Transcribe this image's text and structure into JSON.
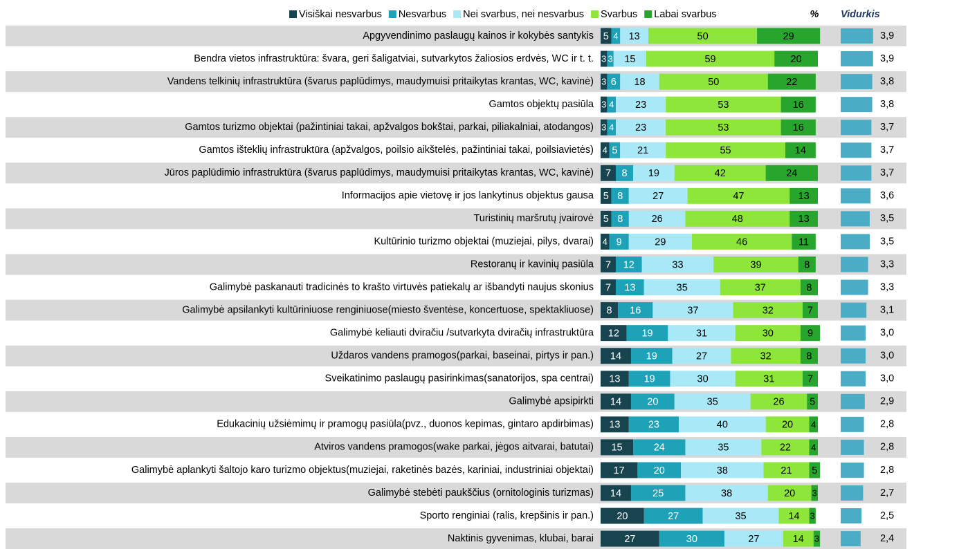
{
  "chart_data": [
    {
      "type": "stacked-bar",
      "orientation": "horizontal",
      "title": "%",
      "categories": [
        "Apgyvendinimo paslaugų kainos ir kokybės santykis",
        "Bendra vietos infrastruktūra: švara, geri šaligatviai, sutvarkytos žaliosios erdvės, WC ir t. t.",
        "Vandens telkinių infrastruktūra (švarus paplūdimys, maudymuisi pritaikytas krantas, WC, kavinė)",
        "Gamtos objektų pasiūla",
        "Gamtos turizmo objektai (pažintiniai takai, apžvalgos bokštai, parkai, piliakalniai, atodangos)",
        "Gamtos išteklių infrastruktūra (apžvalgos, poilsio aikštelės, pažintiniai takai, poilsiavietės)",
        "Jūros paplūdimio infrastruktūra (švarus paplūdimys, maudymuisi pritaikytas krantas, WC, kavinė)",
        "Informacijos apie vietovę ir jos lankytinus objektus gausa",
        "Turistinių maršrutų įvairovė",
        "Kultūrinio turizmo objektai (muziejai, pilys, dvarai)",
        "Restoranų ir kavinių pasiūla",
        "Galimybė paskanauti tradicinės to krašto virtuvės patiekalų ar išbandyti naujus skonius",
        "Galimybė apsilankyti kultūriniuose renginiuose(miesto šventėse, koncertuose, spektakliuose)",
        "Galimybė keliauti dviračiu /sutvarkyta dviračių infrastruktūra",
        "Uždaros vandens pramogos(parkai, baseinai, pirtys ir pan.)",
        "Sveikatinimo paslaugų pasirinkimas(sanatorijos, spa centrai)",
        "Galimybė apsipirkti",
        "Edukacinių užsiėmimų ir pramogų pasiūla(pvz., duonos kepimas, gintaro apdirbimas)",
        "Atviros vandens pramogos(wake parkai, jėgos aitvarai, batutai)",
        "Galimybė aplankyti šaltojo karo turizmo objektus(muziejai, raketinės bazės, kariniai, industriniai objektai)",
        "Galimybė stebėti paukščius (ornitologinis turizmas)",
        "Sporto renginiai (ralis, krepšinis ir pan.)",
        "Naktinis gyvenimas, klubai, barai"
      ],
      "series": [
        {
          "name": "Visiškai nesvarbus",
          "color": "#17444f",
          "values": [
            5,
            3,
            3,
            3,
            3,
            4,
            7,
            5,
            5,
            4,
            7,
            7,
            8,
            12,
            14,
            13,
            14,
            13,
            15,
            17,
            14,
            20,
            27
          ]
        },
        {
          "name": "Nesvarbus",
          "color": "#1ea2b8",
          "values": [
            4,
            3,
            6,
            4,
            4,
            5,
            8,
            8,
            8,
            9,
            12,
            13,
            16,
            19,
            19,
            19,
            20,
            23,
            24,
            20,
            25,
            27,
            30
          ]
        },
        {
          "name": "Nei svarbus, nei nesvarbus",
          "color": "#a8e8f7",
          "values": [
            13,
            15,
            18,
            23,
            23,
            21,
            19,
            27,
            26,
            29,
            33,
            35,
            37,
            31,
            27,
            30,
            35,
            40,
            35,
            38,
            38,
            35,
            27
          ]
        },
        {
          "name": "Svarbus",
          "color": "#8ee63a",
          "values": [
            50,
            59,
            50,
            53,
            53,
            55,
            42,
            47,
            48,
            46,
            39,
            37,
            32,
            30,
            32,
            31,
            26,
            20,
            22,
            21,
            20,
            14,
            14
          ]
        },
        {
          "name": "Labai svarbus",
          "color": "#27a52c",
          "values": [
            29,
            20,
            22,
            16,
            16,
            14,
            24,
            13,
            13,
            11,
            8,
            8,
            7,
            9,
            8,
            7,
            5,
            4,
            4,
            5,
            3,
            3,
            3
          ]
        }
      ]
    },
    {
      "type": "bar",
      "orientation": "horizontal",
      "title": "Vidurkis",
      "color": "#4bacc6",
      "values": [
        3.9,
        3.9,
        3.8,
        3.8,
        3.7,
        3.7,
        3.7,
        3.6,
        3.5,
        3.5,
        3.3,
        3.3,
        3.1,
        3.0,
        3.0,
        3.0,
        2.9,
        2.8,
        2.8,
        2.8,
        2.7,
        2.5,
        2.4
      ],
      "value_labels": [
        "3,9",
        "3,9",
        "3,8",
        "3,8",
        "3,7",
        "3,7",
        "3,7",
        "3,6",
        "3,5",
        "3,5",
        "3,3",
        "3,3",
        "3,1",
        "3,0",
        "3,0",
        "3,0",
        "2,9",
        "2,8",
        "2,8",
        "2,8",
        "2,7",
        "2,5",
        "2,4"
      ]
    }
  ]
}
